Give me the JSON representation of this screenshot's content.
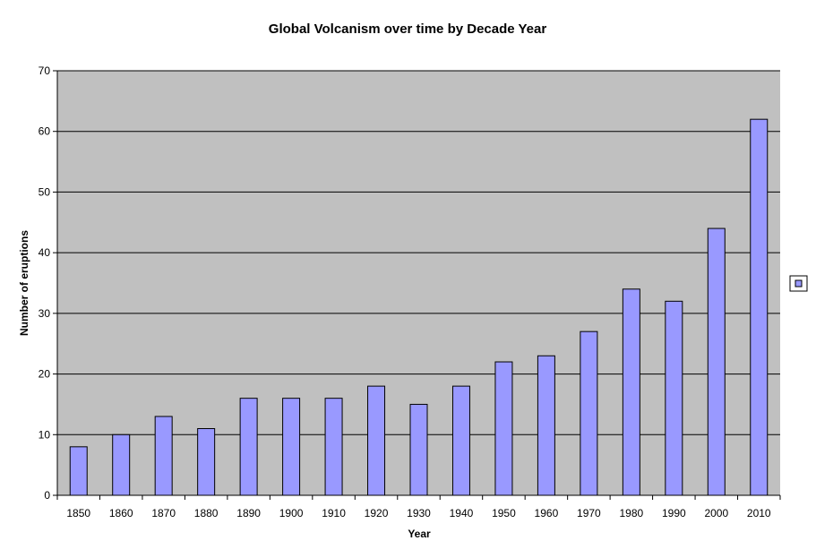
{
  "chart_data": {
    "type": "bar",
    "title": "Global Volcanism over time by Decade Year",
    "xlabel": "Year",
    "ylabel": "Number of eruptions",
    "categories": [
      "1850",
      "1860",
      "1870",
      "1880",
      "1890",
      "1900",
      "1910",
      "1920",
      "1930",
      "1940",
      "1950",
      "1960",
      "1970",
      "1980",
      "1990",
      "2000",
      "2010"
    ],
    "values": [
      8,
      10,
      13,
      11,
      16,
      16,
      16,
      18,
      15,
      18,
      22,
      23,
      27,
      34,
      32,
      44,
      62
    ],
    "ylim": [
      0,
      70
    ],
    "yticks": [
      0,
      10,
      20,
      30,
      40,
      50,
      60,
      70
    ],
    "grid": true,
    "legend_position": "right",
    "colors": {
      "bar_fill": "#9999ff",
      "bar_stroke": "#000000",
      "plot_background": "#c0c0c0",
      "gridline": "#000000"
    }
  }
}
